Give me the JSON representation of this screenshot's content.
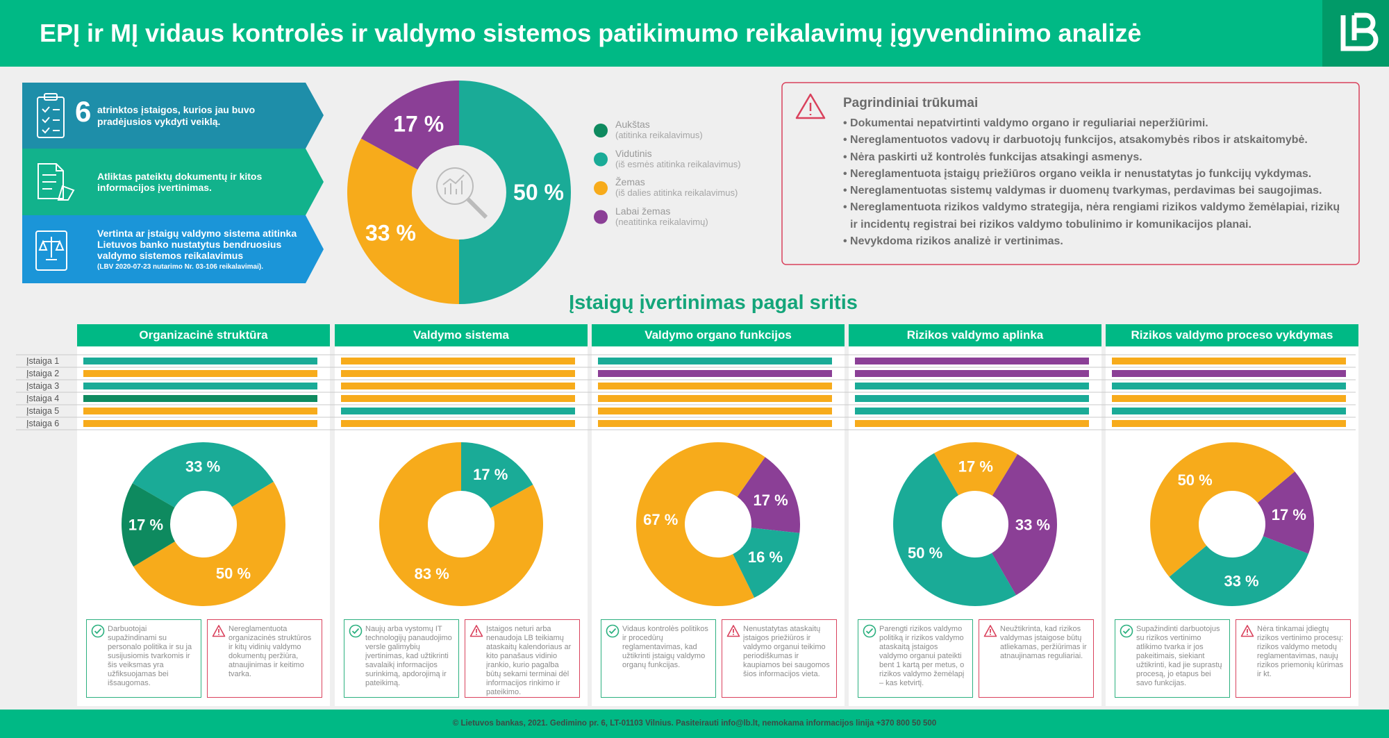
{
  "header": {
    "title": "EPĮ ir MĮ vidaus kontrolės ir valdymo sistemos patikimumo reikalavimų įgyvendinimo analizė"
  },
  "steps": [
    {
      "number": "6",
      "text": "atrinktos įstaigos, kurios jau buvo pradėjusios vykdyti veiklą."
    },
    {
      "text": "Atliktas pateiktų dokumentų ir kitos informacijos įvertinimas."
    },
    {
      "text": "Vertinta ar įstaigų valdymo sistema atitinka Lietuvos banko nustatytus bendruosius valdymo sistemos reikalavimus",
      "note": "(LBV 2020-07-23 nutarimo Nr. 03-106 reikalavimai)."
    }
  ],
  "legend": [
    {
      "name": "Aukštas",
      "note": "(atitinka reikalavimus)",
      "color": "#0e8a5f"
    },
    {
      "name": "Vidutinis",
      "note": "(iš esmės atitinka reikalavimus)",
      "color": "#1aab97"
    },
    {
      "name": "Žemas",
      "note": "(iš dalies atitinka reikalavimus)",
      "color": "#f7ab1b"
    },
    {
      "name": "Labai žemas",
      "note": "(neatitinka reikalavimų)",
      "color": "#8b3f96"
    }
  ],
  "deficiencies": {
    "title": "Pagrindiniai trūkumai",
    "items": [
      "Dokumentai nepatvirtinti valdymo organo ir reguliariai neperžiūrimi.",
      "Nereglamentuotos vadovų ir darbuotojų funkcijos, atsakomybės ribos ir atskaitomybė.",
      "Nėra paskirti už kontrolės funkcijas atsakingi asmenys.",
      "Nereglamentuota įstaigų priežiūros organo veikla ir nenustatytas jo funkcijų vykdymas.",
      "Nereglamentuotas sistemų valdymas ir duomenų tvarkymas, perdavimas bei saugojimas.",
      "Nereglamentuota rizikos valdymo strategija, nėra rengiami rizikos valdymo žemėlapiai, rizikų ir incidentų registrai bei rizikos valdymo tobulinimo ir komunikacijos planai.",
      "Nevykdoma rizikos analizė ir vertinimas."
    ]
  },
  "section_title": "Įstaigų įvertinimas pagal sritis",
  "rows": [
    "Įstaiga 1",
    "Įstaiga 2",
    "Įstaiga 3",
    "Įstaiga 4",
    "Įstaiga 5",
    "Įstaiga 6"
  ],
  "chart_data": [
    {
      "type": "donut",
      "values": [
        50,
        33,
        17
      ],
      "value_labels": [
        "50 %",
        "33 %",
        "17 %"
      ],
      "colors": [
        "#1aab97",
        "#f7ab1b",
        "#8b3f96"
      ]
    },
    {
      "type": "donut",
      "title": "Organizacinė struktūra",
      "values": [
        33,
        50,
        17
      ],
      "value_labels": [
        "33 %",
        "50 %",
        "17 %"
      ],
      "colors": [
        "#1aab97",
        "#f7ab1b",
        "#0e8a5f"
      ],
      "ratings": [
        "#1aab97",
        "#f7ab1b",
        "#1aab97",
        "#0e8a5f",
        "#f7ab1b",
        "#f7ab1b"
      ],
      "strength": "Darbuotojai supažindinami su personalo politika ir su ja susijusiomis tvarkomis ir šis veiksmas yra užfiksuojamas bei išsaugomas.",
      "weakness": "Nereglamentuota organizacinės struktūros ir kitų vidinių valdymo dokumentų peržiūra, atnaujinimas ir keitimo tvarka."
    },
    {
      "type": "donut",
      "title": "Valdymo sistema",
      "values": [
        17,
        83
      ],
      "value_labels": [
        "17 %",
        "83 %"
      ],
      "colors": [
        "#1aab97",
        "#f7ab1b"
      ],
      "ratings": [
        "#f7ab1b",
        "#f7ab1b",
        "#f7ab1b",
        "#f7ab1b",
        "#1aab97",
        "#f7ab1b"
      ],
      "strength": "Naujų arba vystomų IT technologijų panaudojimo versle galimybių įvertinimas, kad užtikrinti savalaikį informacijos surinkimą, apdorojimą ir pateikimą.",
      "weakness": "Įstaigos neturi arba nenaudoja LB teikiamų ataskaitų kalendoriaus ar kito panašaus vidinio įrankio, kurio pagalba būtų sekami terminai dėl informacijos rinkimo ir pateikimo."
    },
    {
      "type": "donut",
      "title": "Valdymo organo funkcijos",
      "values": [
        17,
        16,
        67
      ],
      "value_labels": [
        "17 %",
        "16 %",
        "67 %"
      ],
      "colors": [
        "#8b3f96",
        "#1aab97",
        "#f7ab1b"
      ],
      "ratings": [
        "#1aab97",
        "#8b3f96",
        "#f7ab1b",
        "#f7ab1b",
        "#f7ab1b",
        "#f7ab1b"
      ],
      "strength": "Vidaus kontrolės politikos ir procedūrų reglamentavimas, kad užtikrinti įstaigų valdymo organų funkcijas.",
      "weakness": "Nenustatytas ataskaitų įstaigos priežiūros ir valdymo organui teikimo periodiškumas ir kaupiamos bei saugomos šios informacijos vieta."
    },
    {
      "type": "donut",
      "title": "Rizikos valdymo aplinka",
      "values": [
        17,
        33,
        50
      ],
      "value_labels": [
        "17 %",
        "33 %",
        "50 %"
      ],
      "colors": [
        "#f7ab1b",
        "#8b3f96",
        "#1aab97"
      ],
      "ratings": [
        "#8b3f96",
        "#8b3f96",
        "#1aab97",
        "#1aab97",
        "#1aab97",
        "#f7ab1b"
      ],
      "strength": "Parengti rizikos valdymo politiką ir rizikos valdymo ataskaitą įstaigos valdymo organui pateikti bent 1 kartą per metus, o rizikos valdymo žemėlapį – kas ketvirtį.",
      "weakness": "Neužtikrinta, kad rizikos valdymas įstaigose būtų atliekamas, peržiūrimas ir atnaujinamas reguliariai."
    },
    {
      "type": "donut",
      "title": "Rizikos valdymo proceso vykdymas",
      "values": [
        17,
        33,
        50
      ],
      "value_labels": [
        "17 %",
        "33 %",
        "50 %"
      ],
      "colors": [
        "#8b3f96",
        "#1aab97",
        "#f7ab1b"
      ],
      "ratings": [
        "#f7ab1b",
        "#8b3f96",
        "#1aab97",
        "#f7ab1b",
        "#1aab97",
        "#f7ab1b"
      ],
      "strength": "Supažindinti darbuotojus su rizikos vertinimo atlikimo tvarka ir jos pakeitimais, siekiant užtikrinti, kad jie suprastų procesą, jo etapus bei savo funkcijas.",
      "weakness": "Nėra tinkamai įdiegtų rizikos vertinimo procesų: rizikos valdymo metodų reglamentavimas, naujų rizikos priemonių kūrimas ir kt."
    }
  ],
  "footer": "© Lietuvos bankas, 2021. Gedimino pr. 6, LT-01103 Vilnius. Pasiteirauti info@lb.lt, nemokama informacijos linija +370 800 50 500"
}
